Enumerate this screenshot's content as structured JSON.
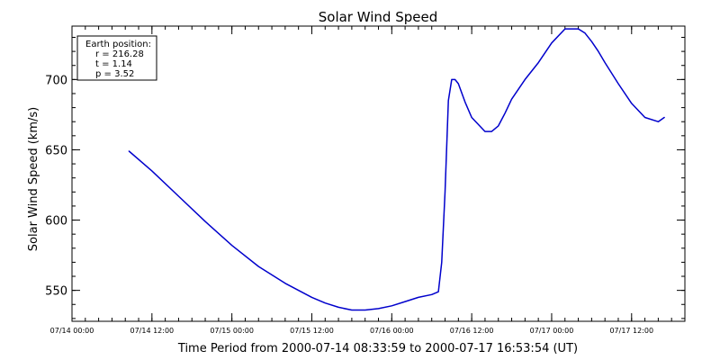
{
  "chart_data": {
    "type": "line",
    "title": "Solar Wind Speed",
    "xlabel": "Time Period from 2000-07-14 08:33:59 to 2000-07-17 16:53:54 (UT)",
    "ylabel": "Solar Wind Speed (km/s)",
    "x_unit": "hours from 07/14 00:00",
    "xlim": [
      0,
      92
    ],
    "ylim": [
      528,
      738
    ],
    "x_ticks": [
      {
        "value": 0,
        "label": "07/14 00:00"
      },
      {
        "value": 12,
        "label": "07/14 12:00"
      },
      {
        "value": 24,
        "label": "07/15 00:00"
      },
      {
        "value": 36,
        "label": "07/15 12:00"
      },
      {
        "value": 48,
        "label": "07/16 00:00"
      },
      {
        "value": 60,
        "label": "07/16 12:00"
      },
      {
        "value": 72,
        "label": "07/17 00:00"
      },
      {
        "value": 84,
        "label": "07/17 12:00"
      }
    ],
    "y_ticks": [
      {
        "value": 550,
        "label": "550"
      },
      {
        "value": 600,
        "label": "600"
      },
      {
        "value": 650,
        "label": "650"
      },
      {
        "value": 700,
        "label": "700"
      }
    ],
    "x_minor_step": 2,
    "y_minor_step": 10,
    "series": [
      {
        "color": "#0000cc",
        "x": [
          8.57,
          12,
          16,
          20,
          24,
          28,
          32,
          36,
          38,
          40,
          42,
          44,
          46,
          48,
          50,
          52,
          54,
          55,
          55.5,
          56,
          56.5,
          57,
          57.5,
          58,
          59,
          60,
          62,
          63,
          64,
          65,
          66,
          68,
          70,
          72,
          74,
          76,
          77,
          78,
          79,
          80,
          82,
          84,
          86,
          88,
          88.9
        ],
        "y": [
          649,
          635,
          617,
          599,
          582,
          567,
          555,
          545,
          541,
          538,
          536,
          536,
          537,
          539,
          542,
          545,
          547,
          549,
          570,
          620,
          685,
          700,
          700,
          697,
          684,
          673,
          663,
          663,
          667,
          676,
          686,
          700,
          712,
          726,
          736,
          736,
          733,
          727,
          720,
          712,
          697,
          683,
          673,
          670,
          673
        ]
      }
    ],
    "annotation": {
      "title": "Earth position:",
      "lines": [
        "r = 216.28",
        "t = 1.14",
        "p = 3.52"
      ]
    }
  }
}
